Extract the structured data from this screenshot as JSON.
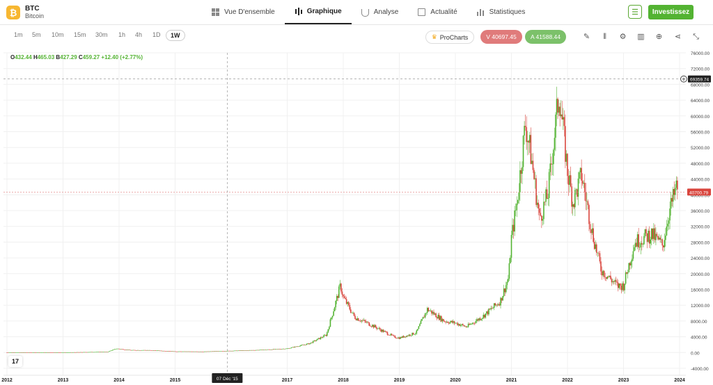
{
  "header": {
    "symbol": "BTC",
    "name": "Bitcoin",
    "coin_glyph": "₿",
    "tabs": [
      {
        "label": "Vue D'ensemble",
        "icon": "grid-icon"
      },
      {
        "label": "Graphique",
        "icon": "candlestick-icon",
        "active": true
      },
      {
        "label": "Analyse",
        "icon": "flask-icon"
      },
      {
        "label": "Actualité",
        "icon": "news-icon"
      },
      {
        "label": "Statistiques",
        "icon": "bar-chart-icon"
      }
    ],
    "invest_label": "Investissez"
  },
  "toolbar": {
    "timeframes": [
      "1m",
      "5m",
      "10m",
      "15m",
      "30m",
      "1h",
      "4h",
      "1D",
      "1W"
    ],
    "active_timeframe": "1W",
    "procharts_label": "ProCharts",
    "sell_label": "V 40697.45",
    "buy_label": "A 41588.44"
  },
  "ohlc": {
    "o_label": "O",
    "o": "432.44",
    "h_label": "H",
    "h": "465.03",
    "b_label": "B",
    "b": "427.29",
    "c_label": "C",
    "c": "459.27",
    "change": "+12.40 (+2.77%)"
  },
  "colors": {
    "up": "#53b332",
    "down": "#d9453d",
    "accent": "#53b332",
    "price_line": "#e07b7b"
  },
  "chart_data": {
    "type": "line",
    "y_ticks": [
      "76000.00",
      "72000.00",
      "68000.00",
      "64000.00",
      "60000.00",
      "56000.00",
      "52000.00",
      "48000.00",
      "44000.00",
      "40000.00",
      "36000.00",
      "32000.00",
      "28000.00",
      "24000.00",
      "20000.00",
      "16000.00",
      "12000.00",
      "8000.00",
      "4000.00",
      "0.00",
      "-4000.00"
    ],
    "ylim": [
      -4000,
      76000
    ],
    "x_ticks": [
      {
        "label": "2012",
        "year": 2012
      },
      {
        "label": "2013",
        "year": 2013
      },
      {
        "label": "2014",
        "year": 2014
      },
      {
        "label": "2015",
        "year": 2015
      },
      {
        "label": "2017",
        "year": 2017
      },
      {
        "label": "2018",
        "year": 2018
      },
      {
        "label": "2019",
        "year": 2019
      },
      {
        "label": "2020",
        "year": 2020
      },
      {
        "label": "2021",
        "year": 2021
      },
      {
        "label": "2022",
        "year": 2022
      },
      {
        "label": "2023",
        "year": 2023
      },
      {
        "label": "2024",
        "year": 2024
      }
    ],
    "crosshair_date": "07 Déc '15",
    "crosshair_price": "69359.74",
    "current_price": "40700.79",
    "series": [
      {
        "x": [
          2012.0,
          2013.0,
          2013.8,
          2013.95,
          2014.2,
          2014.5,
          2015.0,
          2015.5,
          2016.0,
          2016.5,
          2017.0,
          2017.4,
          2017.7,
          2017.95,
          2018.0,
          2018.2,
          2018.5,
          2018.9,
          2019.0,
          2019.3,
          2019.5,
          2019.8,
          2020.0,
          2020.2,
          2020.5,
          2020.8,
          2020.95,
          2021.0,
          2021.1,
          2021.25,
          2021.35,
          2021.5,
          2021.65,
          2021.85,
          2022.0,
          2022.1,
          2022.25,
          2022.45,
          2022.6,
          2022.9,
          2023.0,
          2023.2,
          2023.5,
          2023.7,
          2023.8,
          2023.95
        ],
        "y": [
          5,
          13,
          200,
          1000,
          600,
          600,
          280,
          250,
          430,
          650,
          1000,
          2300,
          4500,
          17000,
          14000,
          9000,
          7000,
          4000,
          3700,
          5000,
          11000,
          8000,
          7500,
          6500,
          9300,
          13000,
          19000,
          29000,
          38000,
          58000,
          50000,
          34000,
          40000,
          66000,
          46000,
          38000,
          45000,
          30000,
          21000,
          16800,
          17000,
          28000,
          30000,
          27000,
          35000,
          42000
        ],
        "candle_color_mode": "weekly"
      }
    ]
  }
}
